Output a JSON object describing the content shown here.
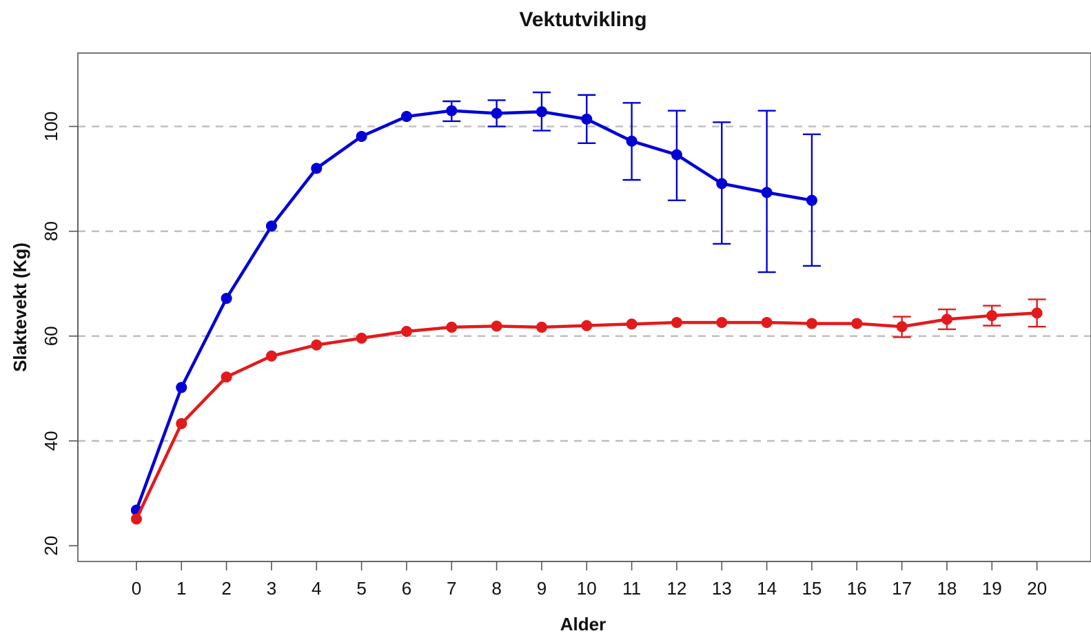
{
  "chart_data": {
    "type": "line",
    "title": "Vektutvikling",
    "xlabel": "Alder",
    "ylabel": "Slaktevekt (Kg)",
    "x_ticks": [
      "0",
      "1",
      "2",
      "3",
      "4",
      "5",
      "6",
      "7",
      "8",
      "9",
      "10",
      "11",
      "12",
      "13",
      "14",
      "15",
      "16",
      "17",
      "18",
      "19",
      "20"
    ],
    "y_ticks": [
      "20",
      "40",
      "60",
      "80",
      "100"
    ],
    "xlim": [
      -1.3,
      21.2
    ],
    "ylim": [
      17,
      114
    ],
    "grid": "horizontal dashed at 40, 60, 80, 100",
    "error_bars": true,
    "series": [
      {
        "color": "#0000d6",
        "x": [
          0,
          1,
          2,
          3,
          4,
          5,
          6,
          7,
          8,
          9,
          10,
          11,
          12,
          13,
          14,
          15
        ],
        "values": [
          26.8,
          50.2,
          67.2,
          81.0,
          92.0,
          98.1,
          101.9,
          103.0,
          102.5,
          102.8,
          101.4,
          97.2,
          94.6,
          89.1,
          87.4,
          85.9
        ],
        "error_low": [
          null,
          null,
          null,
          null,
          null,
          null,
          null,
          101.0,
          100.0,
          99.2,
          96.8,
          89.8,
          85.9,
          77.6,
          72.2,
          73.4
        ],
        "error_high": [
          null,
          null,
          null,
          null,
          null,
          null,
          null,
          104.8,
          105.0,
          106.5,
          106.0,
          104.5,
          103.0,
          100.8,
          103.0,
          98.5
        ]
      },
      {
        "color": "#e31a1c",
        "x": [
          0,
          1,
          2,
          3,
          4,
          5,
          6,
          7,
          8,
          9,
          10,
          11,
          12,
          13,
          14,
          15,
          16,
          17,
          18,
          19,
          20
        ],
        "values": [
          25.1,
          43.3,
          52.2,
          56.2,
          58.3,
          59.6,
          60.9,
          61.7,
          61.9,
          61.7,
          62.0,
          62.3,
          62.6,
          62.6,
          62.6,
          62.4,
          62.4,
          61.8,
          63.2,
          63.9,
          64.4
        ],
        "error_low": [
          null,
          null,
          null,
          null,
          null,
          null,
          null,
          null,
          null,
          null,
          null,
          null,
          null,
          null,
          null,
          null,
          null,
          59.8,
          61.3,
          62.0,
          61.8
        ],
        "error_high": [
          null,
          null,
          null,
          null,
          null,
          null,
          null,
          null,
          null,
          null,
          null,
          null,
          null,
          null,
          null,
          null,
          null,
          63.7,
          65.1,
          65.8,
          67.0
        ]
      }
    ]
  }
}
